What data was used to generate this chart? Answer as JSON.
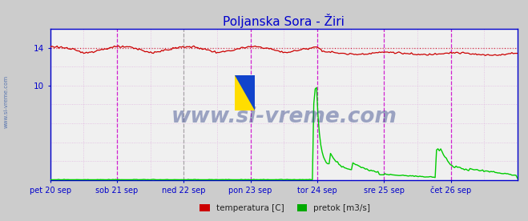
{
  "title": "Poljanska Sora - Žiri",
  "title_color": "#0000cc",
  "title_fontsize": 11,
  "bg_color": "#cccccc",
  "plot_bg_color": "#f0f0f0",
  "x_labels": [
    "pet 20 sep",
    "sob 21 sep",
    "ned 22 sep",
    "pon 23 sep",
    "tor 24 sep",
    "sre 25 sep",
    "čet 26 sep"
  ],
  "x_label_color": "#0000cc",
  "y_tick_color": "#0000cc",
  "grid_color_h": "#ddaadd",
  "grid_color_v": "#ddaadd",
  "axis_color": "#0000cc",
  "watermark": "www.si-vreme.com",
  "watermark_color": "#334488",
  "watermark_alpha": 0.45,
  "side_text": "www.si-vreme.com",
  "side_text_color": "#4466aa",
  "temp_color": "#cc0000",
  "flow_color": "#00cc00",
  "temp_ref_value": 14.0,
  "temp_ref_color": "#cc0000",
  "legend_temp_label": "temperatura [C]",
  "legend_flow_label": "pretok [m3/s]",
  "legend_color": "#cc0000",
  "legend_flow_color": "#00aa00",
  "ylim_min": 0,
  "ylim_max": 16.0,
  "vline_color_magenta": "#cc00cc",
  "vline_color_gray": "#888888",
  "dashed_vline_day": 2,
  "n_points": 336,
  "logo_yellow": "#ffdd00",
  "logo_blue": "#1144cc"
}
